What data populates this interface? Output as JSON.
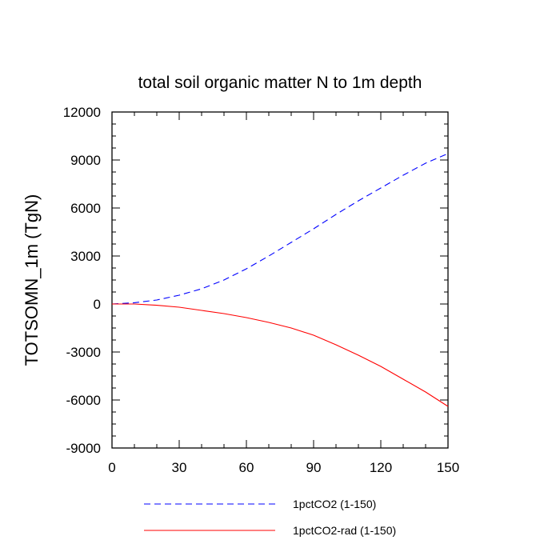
{
  "chart_data": {
    "type": "line",
    "title": "total soil organic matter N to 1m depth",
    "xlabel": "",
    "ylabel": "TOTSOMN_1m  (TgN)",
    "xlim": [
      0,
      150
    ],
    "ylim": [
      -9000,
      12000
    ],
    "xticks": [
      0,
      30,
      60,
      90,
      120,
      150
    ],
    "yticks": [
      -9000,
      -6000,
      -3000,
      0,
      3000,
      6000,
      9000,
      12000
    ],
    "x_tick_labels": [
      "0",
      "30",
      "60",
      "90",
      "120",
      "150"
    ],
    "y_tick_labels": [
      "-9000",
      "-6000",
      "-3000",
      "0",
      "3000",
      "6000",
      "9000",
      "12000"
    ],
    "grid": false,
    "legend_position": "bottom",
    "series": [
      {
        "name": "1pctCO2 (1-150)",
        "color": "#0000ff",
        "style": "dashed",
        "x": [
          0,
          10,
          20,
          30,
          40,
          50,
          60,
          70,
          80,
          90,
          100,
          110,
          120,
          130,
          140,
          150
        ],
        "y": [
          0,
          80,
          250,
          550,
          950,
          1500,
          2200,
          3000,
          3850,
          4700,
          5600,
          6450,
          7250,
          8050,
          8800,
          9400
        ]
      },
      {
        "name": "1pctCO2-rad (1-150)",
        "color": "#ff0000",
        "style": "solid",
        "x": [
          0,
          10,
          20,
          30,
          40,
          50,
          60,
          70,
          80,
          90,
          100,
          110,
          120,
          130,
          140,
          150
        ],
        "y": [
          0,
          0,
          -80,
          -200,
          -400,
          -600,
          -850,
          -1150,
          -1500,
          -1950,
          -2550,
          -3200,
          -3900,
          -4700,
          -5500,
          -6400
        ]
      }
    ]
  }
}
